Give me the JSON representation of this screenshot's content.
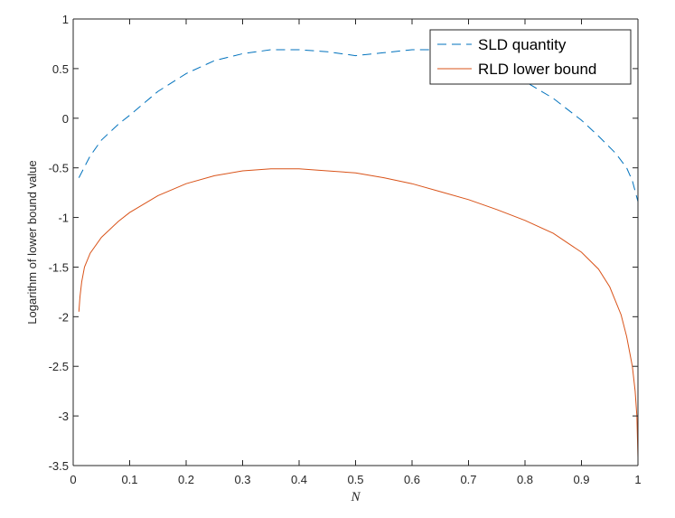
{
  "chart_data": {
    "type": "line",
    "title": "",
    "xlabel": "N",
    "ylabel": "Logarithm of lower bound value",
    "xlim": [
      0,
      1
    ],
    "ylim": [
      -3.5,
      1
    ],
    "xticks": [
      "0",
      "0.1",
      "0.2",
      "0.3",
      "0.4",
      "0.5",
      "0.6",
      "0.7",
      "0.8",
      "0.9",
      "1"
    ],
    "yticks": [
      "-3.5",
      "-3",
      "-2.5",
      "-2",
      "-1.5",
      "-1",
      "-0.5",
      "0",
      "0.5",
      "1"
    ],
    "grid": false,
    "legend_position": "top-right",
    "series": [
      {
        "name": "SLD quantity",
        "color": "#0072BD",
        "style": "dashed",
        "x": [
          0.01,
          0.03,
          0.05,
          0.08,
          0.1,
          0.15,
          0.2,
          0.25,
          0.3,
          0.35,
          0.4,
          0.45,
          0.5,
          0.55,
          0.6,
          0.65,
          0.7,
          0.75,
          0.8,
          0.85,
          0.9,
          0.93,
          0.96,
          0.98,
          0.99,
          1.0
        ],
        "y": [
          -0.6,
          -0.38,
          -0.22,
          -0.06,
          0.03,
          0.27,
          0.45,
          0.58,
          0.65,
          0.69,
          0.69,
          0.67,
          0.63,
          0.66,
          0.69,
          0.69,
          0.61,
          0.52,
          0.37,
          0.2,
          -0.02,
          -0.18,
          -0.35,
          -0.5,
          -0.63,
          -0.84
        ]
      },
      {
        "name": "RLD lower bound",
        "color": "#D95319",
        "style": "solid",
        "x": [
          0.01,
          0.012,
          0.015,
          0.02,
          0.03,
          0.05,
          0.08,
          0.1,
          0.15,
          0.2,
          0.25,
          0.3,
          0.35,
          0.4,
          0.45,
          0.5,
          0.55,
          0.6,
          0.65,
          0.7,
          0.75,
          0.8,
          0.85,
          0.9,
          0.93,
          0.95,
          0.97,
          0.98,
          0.99,
          0.995,
          0.998,
          1.0
        ],
        "y": [
          -1.95,
          -1.8,
          -1.65,
          -1.5,
          -1.36,
          -1.2,
          -1.04,
          -0.95,
          -0.78,
          -0.66,
          -0.58,
          -0.53,
          -0.51,
          -0.51,
          -0.53,
          -0.55,
          -0.6,
          -0.66,
          -0.74,
          -0.82,
          -0.92,
          -1.03,
          -1.16,
          -1.35,
          -1.52,
          -1.7,
          -1.98,
          -2.2,
          -2.5,
          -2.75,
          -3.0,
          -3.42
        ]
      }
    ]
  }
}
